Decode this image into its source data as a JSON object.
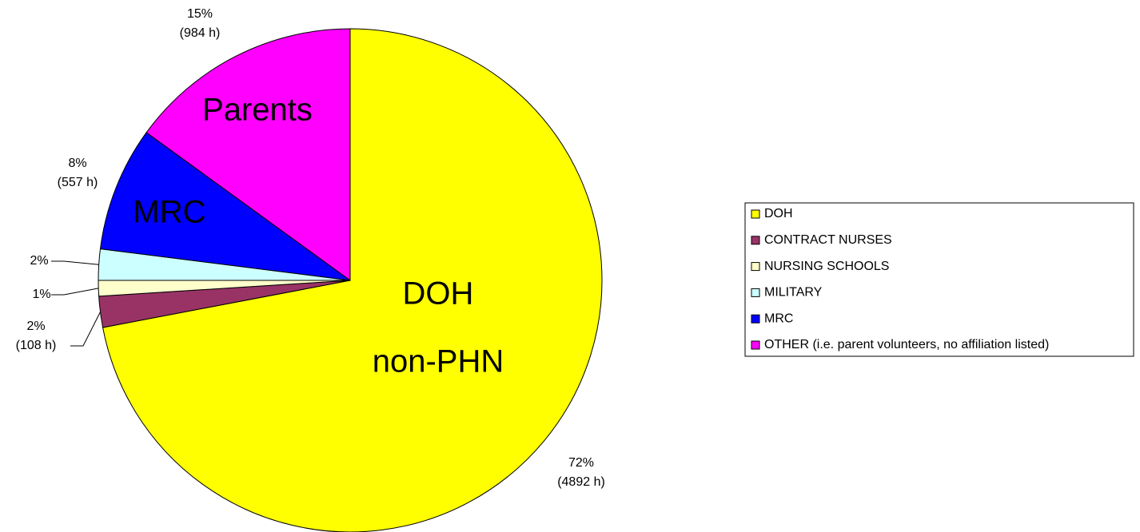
{
  "chart_data": {
    "type": "pie",
    "categories": [
      "DOH",
      "CONTRACT NURSES",
      "NURSING SCHOOLS",
      "MILITARY",
      "MRC",
      "OTHER (i.e. parent volunteers, no affiliation listed)"
    ],
    "values": [
      72,
      2,
      1,
      2,
      8,
      15
    ],
    "value_labels": [
      "72%",
      "2%",
      "1%",
      "2%",
      "8%",
      "15%"
    ],
    "hour_labels": [
      "(4892 h)",
      "(108 h)",
      null,
      null,
      "(557 h)",
      "(984 h)"
    ],
    "slice_texts": [
      [
        "DOH",
        "non-PHN"
      ],
      null,
      null,
      null,
      [
        "MRC"
      ],
      [
        "Parents"
      ]
    ],
    "colors": [
      "#ffff00",
      "#993366",
      "#ffffcc",
      "#ccffff",
      "#0000ff",
      "#ff00ff"
    ],
    "legend": "right"
  }
}
